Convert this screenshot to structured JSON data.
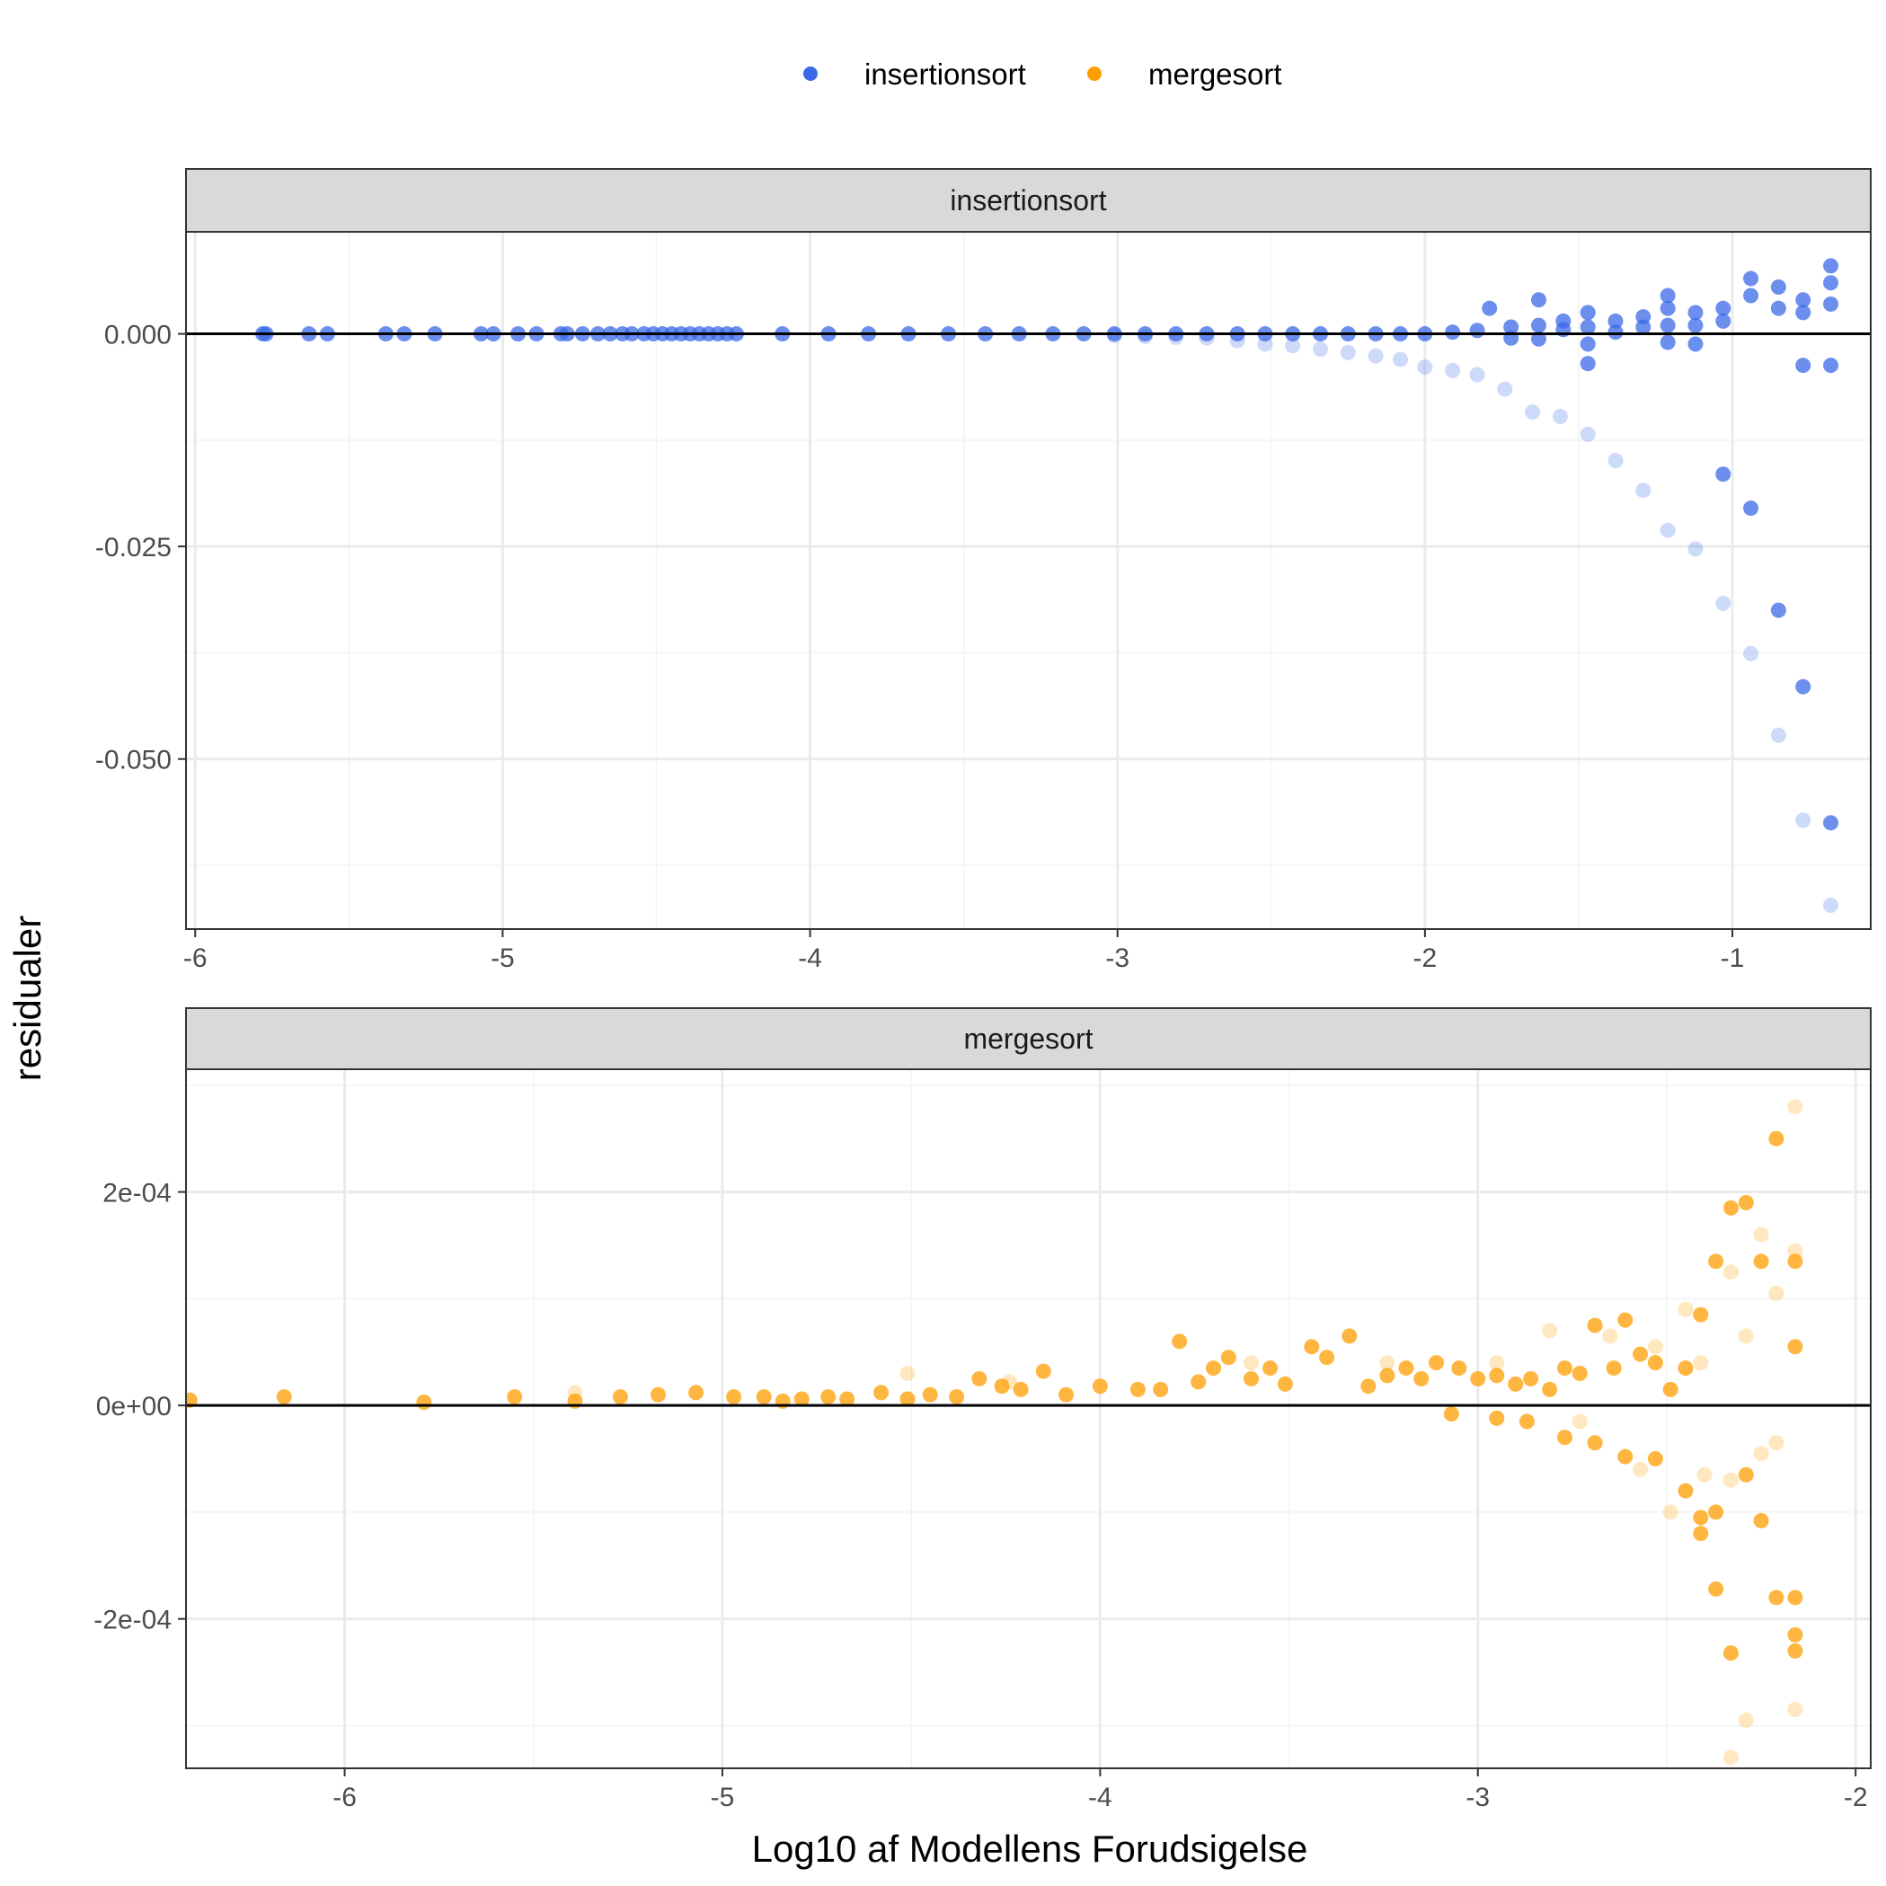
{
  "chart_data": {
    "type": "scatter",
    "xlabel": "Log10 af Modellens Forudsigelse",
    "ylabel": "residualer",
    "legend": {
      "position": "top",
      "entries": [
        {
          "label": "insertionsort",
          "color": "#3b6ae8"
        },
        {
          "label": "mergesort",
          "color": "#ff9e00"
        }
      ]
    },
    "colors": {
      "grid_major": "#ebebeb",
      "grid_minor": "#f3f3f3",
      "strip_bg": "#d9d9d9",
      "panel_border": "#333333",
      "zero_line": "#000000"
    },
    "panels": [
      {
        "strip": "insertionsort",
        "series_name": "insertionsort",
        "color": "#3b6ae8",
        "xlim": [
          -6.03,
          -0.55
        ],
        "ylim": [
          -0.07,
          0.012
        ],
        "xticks": [
          -6,
          -5,
          -4,
          -3,
          -2,
          -1
        ],
        "xtick_labels": [
          "-6",
          "-5",
          "-4",
          "-3",
          "-2",
          "-1"
        ],
        "yticks": [
          0,
          -0.025,
          -0.05
        ],
        "ytick_labels": [
          "0.000",
          "-0.025",
          "-0.050"
        ],
        "zero_line": 0,
        "points_solid": [
          [
            -5.78,
            0
          ],
          [
            -5.77,
            0
          ],
          [
            -5.63,
            0
          ],
          [
            -5.57,
            0
          ],
          [
            -5.38,
            0
          ],
          [
            -5.32,
            0
          ],
          [
            -5.22,
            0
          ],
          [
            -5.07,
            0
          ],
          [
            -5.03,
            0
          ],
          [
            -4.95,
            0
          ],
          [
            -4.89,
            0
          ],
          [
            -4.81,
            0
          ],
          [
            -4.79,
            0
          ],
          [
            -4.74,
            0
          ],
          [
            -4.69,
            0
          ],
          [
            -4.65,
            0
          ],
          [
            -4.61,
            0
          ],
          [
            -4.58,
            0
          ],
          [
            -4.54,
            0
          ],
          [
            -4.51,
            0
          ],
          [
            -4.48,
            0
          ],
          [
            -4.45,
            0
          ],
          [
            -4.42,
            0
          ],
          [
            -4.39,
            0
          ],
          [
            -4.36,
            0
          ],
          [
            -4.33,
            0
          ],
          [
            -4.3,
            0
          ],
          [
            -4.27,
            0
          ],
          [
            -4.24,
            0
          ],
          [
            -4.09,
            0
          ],
          [
            -3.94,
            0
          ],
          [
            -3.81,
            0
          ],
          [
            -3.68,
            0
          ],
          [
            -3.55,
            0
          ],
          [
            -3.43,
            0
          ],
          [
            -3.32,
            0
          ],
          [
            -3.21,
            0
          ],
          [
            -3.11,
            0
          ],
          [
            -3.01,
            0
          ],
          [
            -2.91,
            0
          ],
          [
            -2.81,
            0
          ],
          [
            -2.71,
            0
          ],
          [
            -2.61,
            0
          ],
          [
            -2.52,
            0
          ],
          [
            -2.43,
            0
          ],
          [
            -2.34,
            0
          ],
          [
            -2.25,
            0
          ],
          [
            -2.16,
            0
          ],
          [
            -2.08,
            0
          ],
          [
            -2.0,
            0
          ],
          [
            -1.91,
            0.0002
          ],
          [
            -1.83,
            0.0004
          ],
          [
            -1.79,
            0.003
          ],
          [
            -1.72,
            0.0008
          ],
          [
            -1.72,
            -0.0005
          ],
          [
            -1.63,
            0.004
          ],
          [
            -1.63,
            0.001
          ],
          [
            -1.63,
            -0.0006
          ],
          [
            -1.55,
            0.0015
          ],
          [
            -1.55,
            0.0005
          ],
          [
            -1.47,
            0.0025
          ],
          [
            -1.47,
            0.0008
          ],
          [
            -1.47,
            -0.0012
          ],
          [
            -1.47,
            -0.0035
          ],
          [
            -1.38,
            0.0015
          ],
          [
            -1.38,
            0.0002
          ],
          [
            -1.29,
            0.002
          ],
          [
            -1.29,
            0.0008
          ],
          [
            -1.21,
            0.0045
          ],
          [
            -1.21,
            0.003
          ],
          [
            -1.21,
            0.001
          ],
          [
            -1.21,
            -0.001
          ],
          [
            -1.12,
            0.0025
          ],
          [
            -1.12,
            0.001
          ],
          [
            -1.12,
            -0.0012
          ],
          [
            -1.03,
            0.003
          ],
          [
            -1.03,
            0.0015
          ],
          [
            -1.03,
            -0.0165
          ],
          [
            -0.94,
            0.0065
          ],
          [
            -0.94,
            0.0045
          ],
          [
            -0.94,
            -0.0205
          ],
          [
            -0.85,
            0.0055
          ],
          [
            -0.85,
            0.003
          ],
          [
            -0.85,
            -0.0325
          ],
          [
            -0.77,
            0.004
          ],
          [
            -0.77,
            0.0025
          ],
          [
            -0.77,
            -0.0037
          ],
          [
            -0.77,
            -0.0415
          ],
          [
            -0.68,
            0.008
          ],
          [
            -0.68,
            0.006
          ],
          [
            -0.68,
            0.0035
          ],
          [
            -0.68,
            -0.0037
          ],
          [
            -0.68,
            -0.0575
          ]
        ],
        "points_faint": [
          [
            -3.01,
            -0.0002
          ],
          [
            -2.91,
            -0.0003
          ],
          [
            -2.81,
            -0.0004
          ],
          [
            -2.71,
            -0.0005
          ],
          [
            -2.61,
            -0.0008
          ],
          [
            -2.52,
            -0.0012
          ],
          [
            -2.43,
            -0.0014
          ],
          [
            -2.34,
            -0.0018
          ],
          [
            -2.25,
            -0.0022
          ],
          [
            -2.16,
            -0.0026
          ],
          [
            -2.08,
            -0.003
          ],
          [
            -2.0,
            -0.0039
          ],
          [
            -1.91,
            -0.0043
          ],
          [
            -1.83,
            -0.0048
          ],
          [
            -1.74,
            -0.0065
          ],
          [
            -1.65,
            -0.0092
          ],
          [
            -1.56,
            -0.0097
          ],
          [
            -1.47,
            -0.0118
          ],
          [
            -1.38,
            -0.0149
          ],
          [
            -1.29,
            -0.0184
          ],
          [
            -1.21,
            -0.0231
          ],
          [
            -1.12,
            -0.0253
          ],
          [
            -1.03,
            -0.0317
          ],
          [
            -0.94,
            -0.0376
          ],
          [
            -0.85,
            -0.0472
          ],
          [
            -0.77,
            -0.0572
          ],
          [
            -0.68,
            -0.0672
          ]
        ]
      },
      {
        "strip": "mergesort",
        "series_name": "mergesort",
        "color": "#ff9e00",
        "xlim": [
          -6.42,
          -1.96
        ],
        "ylim": [
          -0.00034,
          0.000315
        ],
        "xticks": [
          -6,
          -5,
          -4,
          -3,
          -2
        ],
        "xtick_labels": [
          "-6",
          "-5",
          "-4",
          "-3",
          "-2"
        ],
        "yticks": [
          0.0002,
          0,
          -0.0002
        ],
        "ytick_labels": [
          "2e-04",
          "0e+00",
          "-2e-04"
        ],
        "zero_line": 0,
        "points_solid": [
          [
            -6.41,
            5e-06
          ],
          [
            -6.16,
            8e-06
          ],
          [
            -5.79,
            3e-06
          ],
          [
            -5.55,
            8e-06
          ],
          [
            -5.39,
            4e-06
          ],
          [
            -5.27,
            8e-06
          ],
          [
            -5.17,
            1e-05
          ],
          [
            -5.07,
            1.2e-05
          ],
          [
            -4.97,
            8e-06
          ],
          [
            -4.89,
            8e-06
          ],
          [
            -4.84,
            4e-06
          ],
          [
            -4.79,
            6e-06
          ],
          [
            -4.72,
            8e-06
          ],
          [
            -4.67,
            6e-06
          ],
          [
            -4.58,
            1.2e-05
          ],
          [
            -4.51,
            6e-06
          ],
          [
            -4.45,
            1e-05
          ],
          [
            -4.38,
            8e-06
          ],
          [
            -4.32,
            2.5e-05
          ],
          [
            -4.26,
            1.8e-05
          ],
          [
            -4.21,
            1.5e-05
          ],
          [
            -4.15,
            3.2e-05
          ],
          [
            -4.09,
            1e-05
          ],
          [
            -4.0,
            1.8e-05
          ],
          [
            -3.9,
            1.5e-05
          ],
          [
            -3.84,
            1.5e-05
          ],
          [
            -3.79,
            6e-05
          ],
          [
            -3.74,
            2.2e-05
          ],
          [
            -3.7,
            3.5e-05
          ],
          [
            -3.66,
            4.5e-05
          ],
          [
            -3.6,
            2.5e-05
          ],
          [
            -3.55,
            3.5e-05
          ],
          [
            -3.51,
            2e-05
          ],
          [
            -3.44,
            5.5e-05
          ],
          [
            -3.4,
            4.5e-05
          ],
          [
            -3.34,
            6.5e-05
          ],
          [
            -3.29,
            1.8e-05
          ],
          [
            -3.24,
            2.8e-05
          ],
          [
            -3.19,
            3.5e-05
          ],
          [
            -3.15,
            2.5e-05
          ],
          [
            -3.11,
            4e-05
          ],
          [
            -3.05,
            3.5e-05
          ],
          [
            -3.0,
            2.5e-05
          ],
          [
            -2.95,
            2.8e-05
          ],
          [
            -2.9,
            2e-05
          ],
          [
            -2.86,
            2.5e-05
          ],
          [
            -2.81,
            1.5e-05
          ],
          [
            -2.77,
            3.5e-05
          ],
          [
            -2.73,
            3e-05
          ],
          [
            -2.69,
            7.5e-05
          ],
          [
            -2.64,
            3.5e-05
          ],
          [
            -2.61,
            8e-05
          ],
          [
            -2.57,
            4.8e-05
          ],
          [
            -2.53,
            4e-05
          ],
          [
            -2.49,
            1.5e-05
          ],
          [
            -2.45,
            3.5e-05
          ],
          [
            -2.41,
            8.5e-05
          ],
          [
            -2.37,
            0.000135
          ],
          [
            -2.33,
            0.000185
          ],
          [
            -2.29,
            0.00019
          ],
          [
            -2.25,
            0.000135
          ],
          [
            -2.21,
            0.00025
          ],
          [
            -2.16,
            0.000135
          ],
          [
            -2.16,
            5.5e-05
          ],
          [
            -3.07,
            -8e-06
          ],
          [
            -2.95,
            -1.2e-05
          ],
          [
            -2.87,
            -1.5e-05
          ],
          [
            -2.77,
            -3e-05
          ],
          [
            -2.69,
            -3.5e-05
          ],
          [
            -2.61,
            -4.8e-05
          ],
          [
            -2.53,
            -5e-05
          ],
          [
            -2.45,
            -8e-05
          ],
          [
            -2.41,
            -0.000105
          ],
          [
            -2.41,
            -0.00012
          ],
          [
            -2.37,
            -0.0001
          ],
          [
            -2.37,
            -0.000172
          ],
          [
            -2.33,
            -0.000232
          ],
          [
            -2.29,
            -6.5e-05
          ],
          [
            -2.25,
            -0.000108
          ],
          [
            -2.21,
            -0.00018
          ],
          [
            -2.16,
            -0.00018
          ],
          [
            -2.16,
            -0.000215
          ],
          [
            -2.16,
            -0.00023
          ]
        ],
        "points_faint": [
          [
            -5.39,
            1.2e-05
          ],
          [
            -4.51,
            3e-05
          ],
          [
            -4.24,
            2.2e-05
          ],
          [
            -3.6,
            4e-05
          ],
          [
            -3.24,
            4e-05
          ],
          [
            -2.95,
            4e-05
          ],
          [
            -2.81,
            7e-05
          ],
          [
            -2.65,
            6.5e-05
          ],
          [
            -2.53,
            5.5e-05
          ],
          [
            -2.45,
            9e-05
          ],
          [
            -2.41,
            4e-05
          ],
          [
            -2.33,
            0.000125
          ],
          [
            -2.29,
            6.5e-05
          ],
          [
            -2.25,
            0.00016
          ],
          [
            -2.21,
            0.000105
          ],
          [
            -2.16,
            0.000145
          ],
          [
            -2.73,
            -1.5e-05
          ],
          [
            -2.57,
            -6e-05
          ],
          [
            -2.49,
            -0.0001
          ],
          [
            -2.4,
            -6.5e-05
          ],
          [
            -2.33,
            -7e-05
          ],
          [
            -2.29,
            -0.000295
          ],
          [
            -2.25,
            -4.5e-05
          ],
          [
            -2.21,
            -3.5e-05
          ],
          [
            -2.16,
            -0.000285
          ],
          [
            -2.33,
            -0.00033
          ],
          [
            -2.16,
            0.00028
          ]
        ]
      }
    ]
  }
}
